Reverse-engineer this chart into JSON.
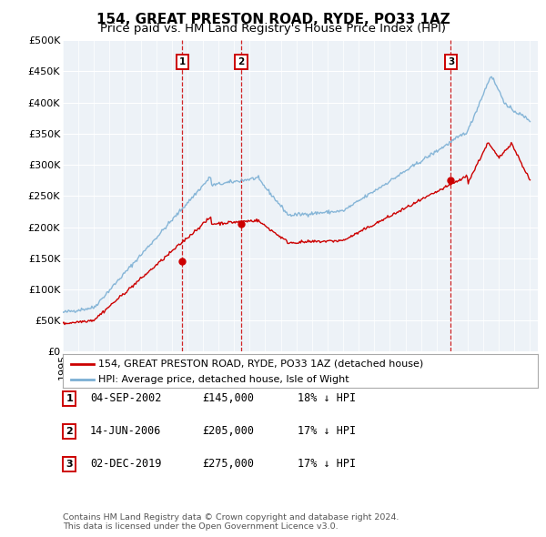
{
  "title": "154, GREAT PRESTON ROAD, RYDE, PO33 1AZ",
  "subtitle": "Price paid vs. HM Land Registry's House Price Index (HPI)",
  "ylabel_ticks": [
    "£0",
    "£50K",
    "£100K",
    "£150K",
    "£200K",
    "£250K",
    "£300K",
    "£350K",
    "£400K",
    "£450K",
    "£500K"
  ],
  "ytick_values": [
    0,
    50000,
    100000,
    150000,
    200000,
    250000,
    300000,
    350000,
    400000,
    450000,
    500000
  ],
  "xlim_start": 1995.0,
  "xlim_end": 2025.5,
  "ylim_min": 0,
  "ylim_max": 500000,
  "sale_dates": [
    2002.67,
    2006.45,
    2019.92
  ],
  "sale_prices": [
    145000,
    205000,
    275000
  ],
  "sale_labels": [
    "1",
    "2",
    "3"
  ],
  "vline_color": "#cc0000",
  "sale_marker_color": "#cc0000",
  "hpi_line_color": "#7bafd4",
  "price_line_color": "#cc0000",
  "background_plot": "#edf2f7",
  "legend_label_price": "154, GREAT PRESTON ROAD, RYDE, PO33 1AZ (detached house)",
  "legend_label_hpi": "HPI: Average price, detached house, Isle of Wight",
  "table_entries": [
    {
      "num": "1",
      "date": "04-SEP-2002",
      "price": "£145,000",
      "hpi": "18% ↓ HPI"
    },
    {
      "num": "2",
      "date": "14-JUN-2006",
      "price": "£205,000",
      "hpi": "17% ↓ HPI"
    },
    {
      "num": "3",
      "date": "02-DEC-2019",
      "price": "£275,000",
      "hpi": "17% ↓ HPI"
    }
  ],
  "footer": "Contains HM Land Registry data © Crown copyright and database right 2024.\nThis data is licensed under the Open Government Licence v3.0.",
  "title_fontsize": 11,
  "subtitle_fontsize": 9.5,
  "tick_fontsize": 8
}
